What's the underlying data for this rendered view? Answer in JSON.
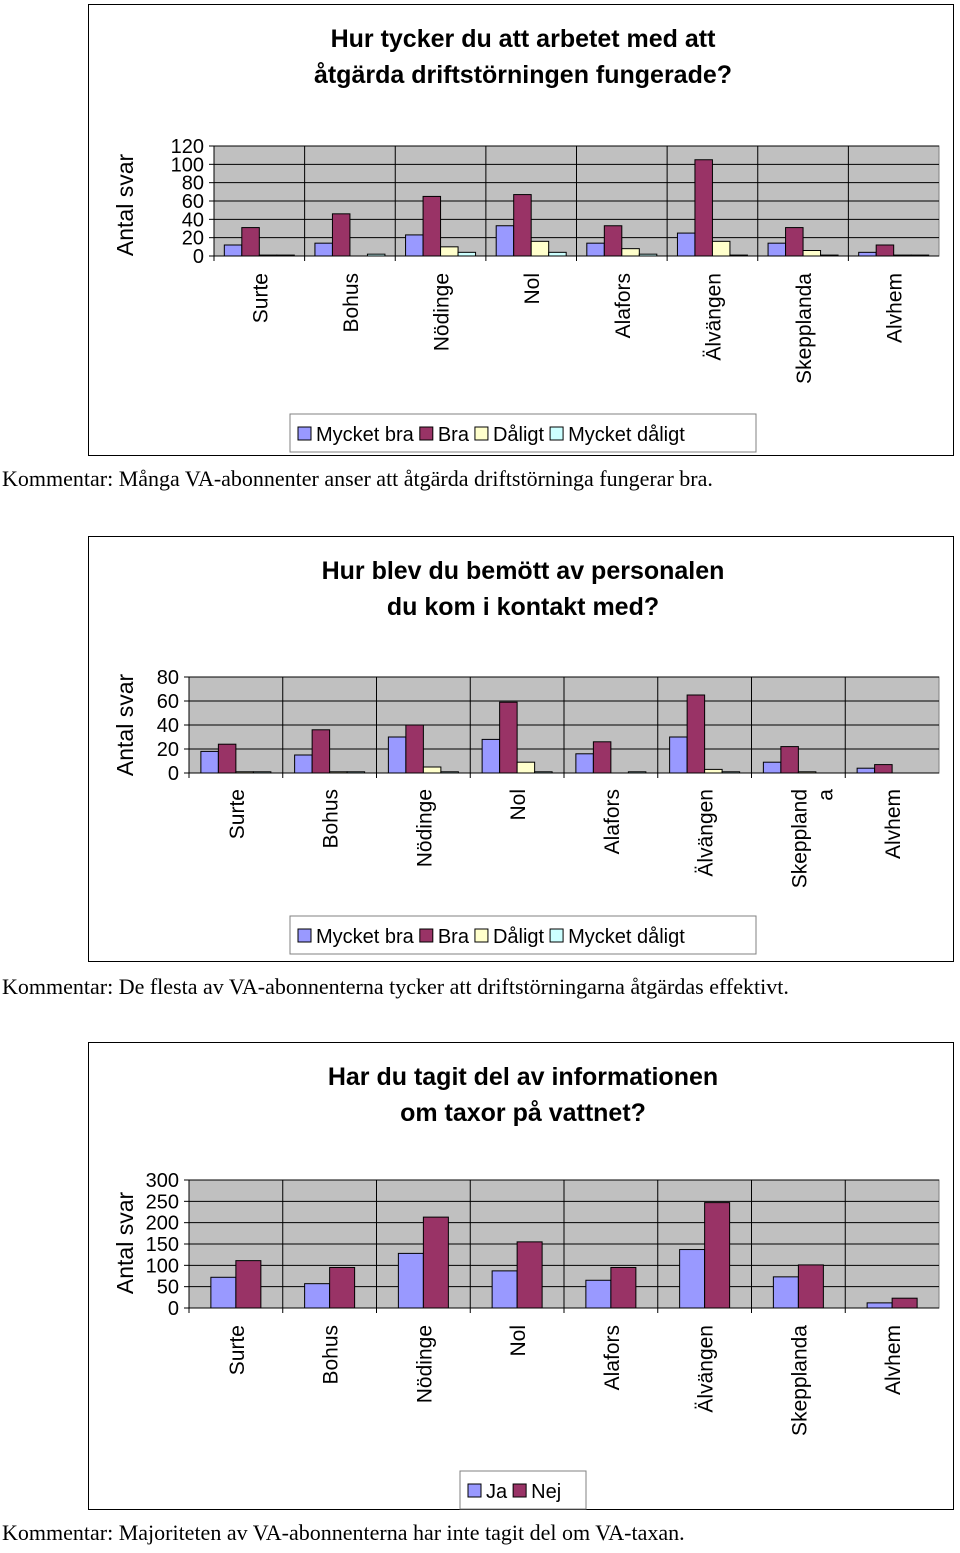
{
  "colors": {
    "mycket_bra": "#9999ff",
    "bra": "#993366",
    "daligt": "#ffffcc",
    "mycket_daligt": "#ccffff",
    "plot_bg": "#c0c0c0"
  },
  "comments": [
    "Kommentar: Många VA-abonnenter anser att åtgärda driftstörninga fungerar bra.",
    "Kommentar: De flesta av VA-abonnenterna tycker att driftstörningarna åtgärdas effektivt.",
    "Kommentar: Majoriteten av VA-abonnenterna har inte tagit del om VA-taxan."
  ],
  "chart_data": [
    {
      "type": "bar",
      "title_lines": [
        "Hur tycker du att arbetet med att",
        "åtgärda driftstörningen fungerade?"
      ],
      "ylabel": "Antal svar",
      "ylim": [
        0,
        120
      ],
      "yticks": [
        0,
        20,
        40,
        60,
        80,
        100,
        120
      ],
      "categories": [
        [
          "Surte"
        ],
        [
          "Bohus"
        ],
        [
          "Nödinge"
        ],
        [
          "Nol"
        ],
        [
          "Alafors"
        ],
        [
          "Älvängen"
        ],
        [
          "Skepplanda"
        ],
        [
          "Alvhem"
        ]
      ],
      "series": [
        {
          "name": "Mycket bra",
          "color": "#9999ff",
          "values": [
            12,
            14,
            23,
            33,
            14,
            25,
            14,
            4
          ]
        },
        {
          "name": "Bra",
          "color": "#993366",
          "values": [
            31,
            46,
            65,
            67,
            33,
            105,
            31,
            12
          ]
        },
        {
          "name": "Dåligt",
          "color": "#ffffcc",
          "values": [
            1,
            0,
            10,
            16,
            8,
            16,
            6,
            1
          ]
        },
        {
          "name": "Mycket dåligt",
          "color": "#ccffff",
          "values": [
            1,
            2,
            4,
            4,
            2,
            1,
            1,
            1
          ]
        }
      ],
      "legend": "bottom"
    },
    {
      "type": "bar",
      "title_lines": [
        "Hur blev du bemött av personalen",
        "du kom i kontakt med?"
      ],
      "ylabel": "Antal svar",
      "ylim": [
        0,
        80
      ],
      "yticks": [
        0,
        20,
        40,
        60,
        80
      ],
      "categories": [
        [
          "Surte"
        ],
        [
          "Bohus"
        ],
        [
          "Nödinge"
        ],
        [
          "Nol"
        ],
        [
          "Alafors"
        ],
        [
          "Älvängen"
        ],
        [
          "Skeppland",
          "a"
        ],
        [
          "Alvhem"
        ]
      ],
      "series": [
        {
          "name": "Mycket bra",
          "color": "#9999ff",
          "values": [
            18,
            15,
            30,
            28,
            16,
            30,
            9,
            4
          ]
        },
        {
          "name": "Bra",
          "color": "#993366",
          "values": [
            24,
            36,
            40,
            59,
            26,
            65,
            22,
            7
          ]
        },
        {
          "name": "Dåligt",
          "color": "#ffffcc",
          "values": [
            1,
            1,
            5,
            9,
            0,
            3,
            1,
            0
          ]
        },
        {
          "name": "Mycket dåligt",
          "color": "#ccffff",
          "values": [
            1,
            1,
            1,
            1,
            1,
            1,
            0,
            0
          ]
        }
      ],
      "legend": "bottom"
    },
    {
      "type": "bar",
      "title_lines": [
        "Har du tagit del av informationen",
        "om taxor på vattnet?"
      ],
      "ylabel": "Antal svar",
      "ylim": [
        0,
        300
      ],
      "yticks": [
        0,
        50,
        100,
        150,
        200,
        250,
        300
      ],
      "categories": [
        [
          "Surte"
        ],
        [
          "Bohus"
        ],
        [
          "Nödinge"
        ],
        [
          "Nol"
        ],
        [
          "Alafors"
        ],
        [
          "Älvängen"
        ],
        [
          "Skepplanda"
        ],
        [
          "Alvhem"
        ]
      ],
      "series": [
        {
          "name": "Ja",
          "color": "#9999ff",
          "values": [
            72,
            57,
            128,
            87,
            65,
            137,
            73,
            12
          ]
        },
        {
          "name": "Nej",
          "color": "#993366",
          "values": [
            111,
            95,
            213,
            155,
            95,
            247,
            101,
            23
          ]
        }
      ],
      "legend": "bottom"
    }
  ]
}
